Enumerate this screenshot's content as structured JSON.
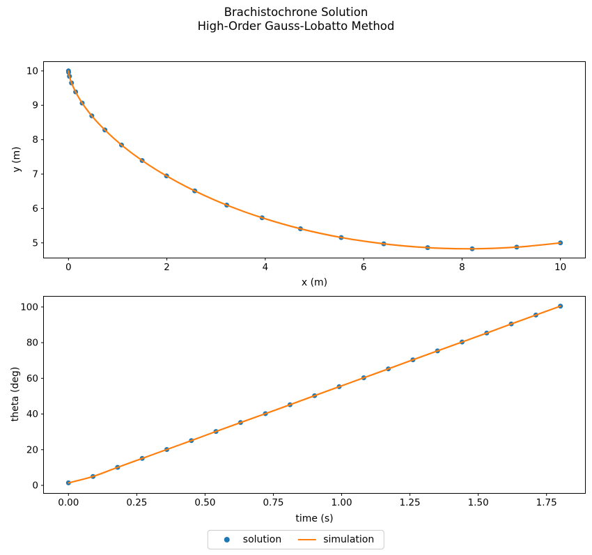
{
  "figure": {
    "title_line1": "Brachistochrone Solution",
    "title_line2": "High-Order Gauss-Lobatto Method",
    "background": "#ffffff"
  },
  "colors": {
    "solution": "#1f77b4",
    "simulation": "#ff7f0e",
    "spine": "#000000",
    "legend_border": "#cccccc"
  },
  "legend": {
    "position": "lower center",
    "items": [
      {
        "label": "solution",
        "marker": "dot",
        "color": "#1f77b4"
      },
      {
        "label": "simulation",
        "marker": "line",
        "color": "#ff7f0e"
      }
    ]
  },
  "chart_data": [
    {
      "type": "line+scatter",
      "title": "",
      "xlabel": "x (m)",
      "ylabel": "y (m)",
      "xlim": [
        -0.5,
        10.5
      ],
      "ylim": [
        4.57,
        10.26
      ],
      "grid": false,
      "xticks": {
        "values": [
          0,
          2,
          4,
          6,
          8,
          10
        ],
        "labels": [
          "0",
          "2",
          "4",
          "6",
          "8",
          "10"
        ]
      },
      "yticks": {
        "values": [
          5,
          6,
          7,
          8,
          9,
          10
        ],
        "labels": [
          "5",
          "6",
          "7",
          "8",
          "9",
          "10"
        ]
      },
      "series": [
        {
          "name": "solution",
          "plot": "scatter",
          "color": "#1f77b4",
          "x": [
            0.0,
            0.002,
            0.019,
            0.062,
            0.145,
            0.278,
            0.474,
            0.74,
            1.079,
            1.497,
            1.993,
            2.567,
            3.217,
            3.935,
            4.715,
            5.544,
            6.409,
            7.3,
            8.206,
            9.111,
            10.0
          ],
          "y": [
            10.0,
            9.96,
            9.843,
            9.65,
            9.389,
            9.066,
            8.693,
            8.284,
            7.845,
            7.394,
            6.947,
            6.512,
            6.099,
            5.73,
            5.411,
            5.156,
            4.972,
            4.861,
            4.828,
            4.875,
            5.0
          ]
        },
        {
          "name": "simulation",
          "plot": "line",
          "color": "#ff7f0e",
          "x": [
            0.0,
            0.002,
            0.019,
            0.062,
            0.145,
            0.278,
            0.474,
            0.74,
            1.079,
            1.497,
            1.993,
            2.567,
            3.217,
            3.935,
            4.715,
            5.544,
            6.409,
            7.3,
            8.206,
            9.111,
            10.0
          ],
          "y": [
            10.0,
            9.96,
            9.843,
            9.65,
            9.389,
            9.066,
            8.693,
            8.284,
            7.845,
            7.394,
            6.947,
            6.512,
            6.099,
            5.73,
            5.411,
            5.156,
            4.972,
            4.861,
            4.828,
            4.875,
            5.0
          ]
        }
      ]
    },
    {
      "type": "line+scatter",
      "title": "",
      "xlabel": "time (s)",
      "ylabel": "theta (deg)",
      "xlim": [
        -0.09,
        1.891
      ],
      "ylim": [
        -4.3,
        105.8
      ],
      "grid": false,
      "xticks": {
        "values": [
          0.0,
          0.25,
          0.5,
          0.75,
          1.0,
          1.25,
          1.5,
          1.75
        ],
        "labels": [
          "0.00",
          "0.25",
          "0.50",
          "0.75",
          "1.00",
          "1.25",
          "1.50",
          "1.75"
        ]
      },
      "yticks": {
        "values": [
          0,
          20,
          40,
          60,
          80,
          100
        ],
        "labels": [
          "0",
          "20",
          "40",
          "60",
          "80",
          "100"
        ]
      },
      "series": [
        {
          "name": "solution",
          "plot": "scatter",
          "color": "#1f77b4",
          "x": [
            0.0,
            0.09,
            0.18,
            0.27,
            0.36,
            0.45,
            0.54,
            0.63,
            0.721,
            0.811,
            0.901,
            0.991,
            1.081,
            1.171,
            1.261,
            1.351,
            1.441,
            1.531,
            1.621,
            1.711,
            1.801
          ],
          "y": [
            1.4,
            5.0,
            10.1,
            15.1,
            20.1,
            25.1,
            30.2,
            35.2,
            40.2,
            45.2,
            50.3,
            55.3,
            60.3,
            65.3,
            70.4,
            75.4,
            80.4,
            85.4,
            90.5,
            95.5,
            100.5
          ]
        },
        {
          "name": "simulation",
          "plot": "line",
          "color": "#ff7f0e",
          "x": [
            0.0,
            0.09,
            0.18,
            0.27,
            0.36,
            0.45,
            0.54,
            0.63,
            0.721,
            0.811,
            0.901,
            0.991,
            1.081,
            1.171,
            1.261,
            1.351,
            1.441,
            1.531,
            1.621,
            1.711,
            1.801
          ],
          "y": [
            1.4,
            5.0,
            10.1,
            15.1,
            20.1,
            25.1,
            30.2,
            35.2,
            40.2,
            45.2,
            50.3,
            55.3,
            60.3,
            65.3,
            70.4,
            75.4,
            80.4,
            85.4,
            90.5,
            95.5,
            100.5
          ]
        }
      ]
    }
  ]
}
